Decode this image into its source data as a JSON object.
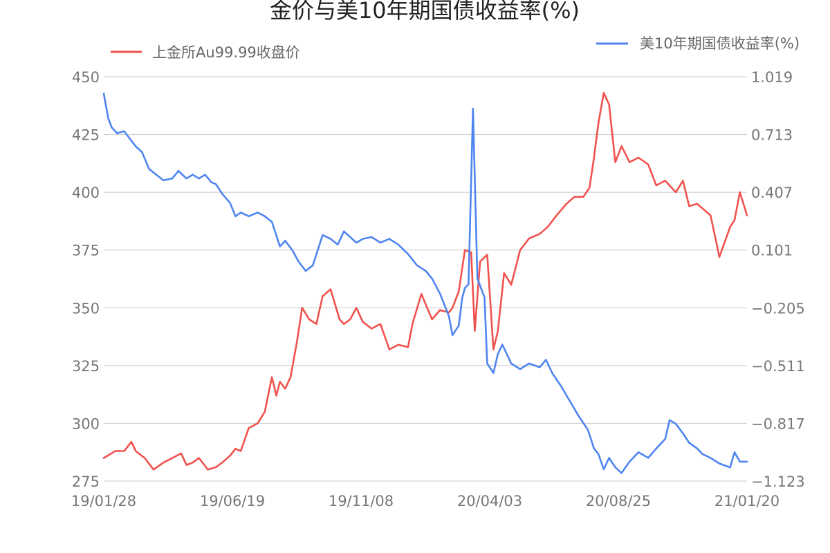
{
  "chart_data": {
    "type": "line",
    "title": "金价与美10年期国债收益率(%)",
    "x_tick_labels": [
      "19/01/28",
      "19/06/19",
      "19/11/08",
      "20/04/03",
      "20/08/25",
      "21/01/20"
    ],
    "y_left": {
      "range": [
        275,
        450
      ],
      "tick_labels": [
        "450",
        "425",
        "400",
        "375",
        "350",
        "325",
        "300",
        "275"
      ]
    },
    "y_right": {
      "range": [
        -1.123,
        1.019
      ],
      "tick_labels": [
        "1.019",
        "0.713",
        "0.407",
        "0.101",
        "−0.205",
        "−0.511",
        "−0.817",
        "−1.123"
      ]
    },
    "grid": true,
    "legend_placement": "top",
    "series": [
      {
        "name": "上金所Au99.99收盘价",
        "axis": "left",
        "color": "#f0524e",
        "x": [
          "2019-01-28",
          "2019-02-10",
          "2019-02-20",
          "2019-02-28",
          "2019-03-05",
          "2019-03-15",
          "2019-03-25",
          "2019-04-05",
          "2019-04-15",
          "2019-04-25",
          "2019-05-01",
          "2019-05-08",
          "2019-05-15",
          "2019-05-25",
          "2019-06-03",
          "2019-06-10",
          "2019-06-19",
          "2019-06-25",
          "2019-07-01",
          "2019-07-10",
          "2019-07-20",
          "2019-07-28",
          "2019-08-05",
          "2019-08-10",
          "2019-08-14",
          "2019-08-20",
          "2019-08-26",
          "2019-09-02",
          "2019-09-08",
          "2019-09-16",
          "2019-09-24",
          "2019-10-01",
          "2019-10-10",
          "2019-10-20",
          "2019-10-25",
          "2019-11-01",
          "2019-11-08",
          "2019-11-15",
          "2019-11-25",
          "2019-12-05",
          "2019-12-15",
          "2019-12-25",
          "2020-01-05",
          "2020-01-10",
          "2020-01-20",
          "2020-02-01",
          "2020-02-10",
          "2020-02-20",
          "2020-02-24",
          "2020-03-02",
          "2020-03-09",
          "2020-03-16",
          "2020-03-20",
          "2020-03-26",
          "2020-04-03",
          "2020-04-10",
          "2020-04-15",
          "2020-04-22",
          "2020-04-30",
          "2020-05-10",
          "2020-05-20",
          "2020-06-01",
          "2020-06-10",
          "2020-06-20",
          "2020-07-01",
          "2020-07-10",
          "2020-07-20",
          "2020-07-27",
          "2020-08-01",
          "2020-08-06",
          "2020-08-12",
          "2020-08-18",
          "2020-08-25",
          "2020-09-01",
          "2020-09-10",
          "2020-09-20",
          "2020-10-01",
          "2020-10-10",
          "2020-10-20",
          "2020-11-01",
          "2020-11-09",
          "2020-11-16",
          "2020-11-25",
          "2020-12-01",
          "2020-12-10",
          "2020-12-20",
          "2021-01-01",
          "2021-01-06",
          "2021-01-12",
          "2021-01-20"
        ],
        "values": [
          285,
          288,
          288,
          292,
          288,
          285,
          280,
          283,
          285,
          287,
          282,
          283,
          285,
          280,
          281,
          283,
          286,
          289,
          288,
          298,
          300,
          305,
          320,
          312,
          318,
          315,
          320,
          335,
          350,
          345,
          343,
          355,
          358,
          345,
          343,
          345,
          350,
          344,
          341,
          343,
          332,
          334,
          333,
          343,
          356,
          345,
          349,
          348,
          350,
          357,
          375,
          374,
          340,
          370,
          373,
          332,
          340,
          365,
          360,
          375,
          380,
          382,
          385,
          390,
          395,
          398,
          398,
          402,
          415,
          430,
          443,
          438,
          413,
          420,
          413,
          415,
          412,
          403,
          405,
          400,
          405,
          394,
          395,
          393,
          390,
          372,
          385,
          388,
          400,
          390
        ]
      },
      {
        "name": "美10年期国债收益率(%)",
        "axis": "right",
        "color": "#4f85f0",
        "x": [
          "2019-01-28",
          "2019-02-02",
          "2019-02-06",
          "2019-02-12",
          "2019-02-20",
          "2019-02-28",
          "2019-03-05",
          "2019-03-12",
          "2019-03-20",
          "2019-03-28",
          "2019-04-05",
          "2019-04-15",
          "2019-04-22",
          "2019-05-01",
          "2019-05-08",
          "2019-05-15",
          "2019-05-22",
          "2019-05-29",
          "2019-06-03",
          "2019-06-10",
          "2019-06-19",
          "2019-06-25",
          "2019-07-01",
          "2019-07-10",
          "2019-07-20",
          "2019-07-28",
          "2019-08-05",
          "2019-08-14",
          "2019-08-20",
          "2019-08-28",
          "2019-09-04",
          "2019-09-12",
          "2019-09-20",
          "2019-10-01",
          "2019-10-10",
          "2019-10-18",
          "2019-10-25",
          "2019-11-01",
          "2019-11-08",
          "2019-11-15",
          "2019-11-25",
          "2019-12-05",
          "2019-12-15",
          "2019-12-25",
          "2020-01-05",
          "2020-01-15",
          "2020-01-25",
          "2020-02-01",
          "2020-02-10",
          "2020-02-20",
          "2020-02-24",
          "2020-03-02",
          "2020-03-06",
          "2020-03-09",
          "2020-03-13",
          "2020-03-18",
          "2020-03-23",
          "2020-03-31",
          "2020-04-03",
          "2020-04-10",
          "2020-04-15",
          "2020-04-20",
          "2020-04-30",
          "2020-05-10",
          "2020-05-20",
          "2020-06-01",
          "2020-06-08",
          "2020-06-15",
          "2020-06-25",
          "2020-07-05",
          "2020-07-15",
          "2020-07-25",
          "2020-08-01",
          "2020-08-06",
          "2020-08-12",
          "2020-08-18",
          "2020-08-25",
          "2020-09-01",
          "2020-09-10",
          "2020-09-20",
          "2020-10-01",
          "2020-10-10",
          "2020-10-20",
          "2020-10-25",
          "2020-11-01",
          "2020-11-09",
          "2020-11-16",
          "2020-11-25",
          "2020-12-01",
          "2020-12-10",
          "2020-12-20",
          "2021-01-01",
          "2021-01-06",
          "2021-01-12",
          "2021-01-20"
        ],
        "values": [
          0.93,
          0.8,
          0.75,
          0.72,
          0.73,
          0.68,
          0.65,
          0.62,
          0.53,
          0.5,
          0.47,
          0.48,
          0.52,
          0.48,
          0.5,
          0.48,
          0.5,
          0.46,
          0.45,
          0.4,
          0.35,
          0.28,
          0.3,
          0.28,
          0.3,
          0.28,
          0.25,
          0.12,
          0.15,
          0.1,
          0.04,
          -0.01,
          0.02,
          0.18,
          0.16,
          0.13,
          0.2,
          0.17,
          0.14,
          0.16,
          0.17,
          0.14,
          0.16,
          0.13,
          0.08,
          0.02,
          -0.01,
          -0.05,
          -0.13,
          -0.25,
          -0.35,
          -0.3,
          -0.15,
          -0.1,
          -0.08,
          0.85,
          -0.05,
          -0.15,
          -0.5,
          -0.55,
          -0.45,
          -0.4,
          -0.5,
          -0.53,
          -0.5,
          -0.52,
          -0.48,
          -0.55,
          -0.62,
          -0.7,
          -0.78,
          -0.85,
          -0.95,
          -0.98,
          -1.06,
          -1.0,
          -1.05,
          -1.08,
          -1.02,
          -0.97,
          -1.0,
          -0.95,
          -0.9,
          -0.8,
          -0.82,
          -0.87,
          -0.92,
          -0.95,
          -0.98,
          -1.0,
          -1.03,
          -1.05,
          -0.97,
          -1.02,
          -1.02
        ]
      }
    ]
  }
}
